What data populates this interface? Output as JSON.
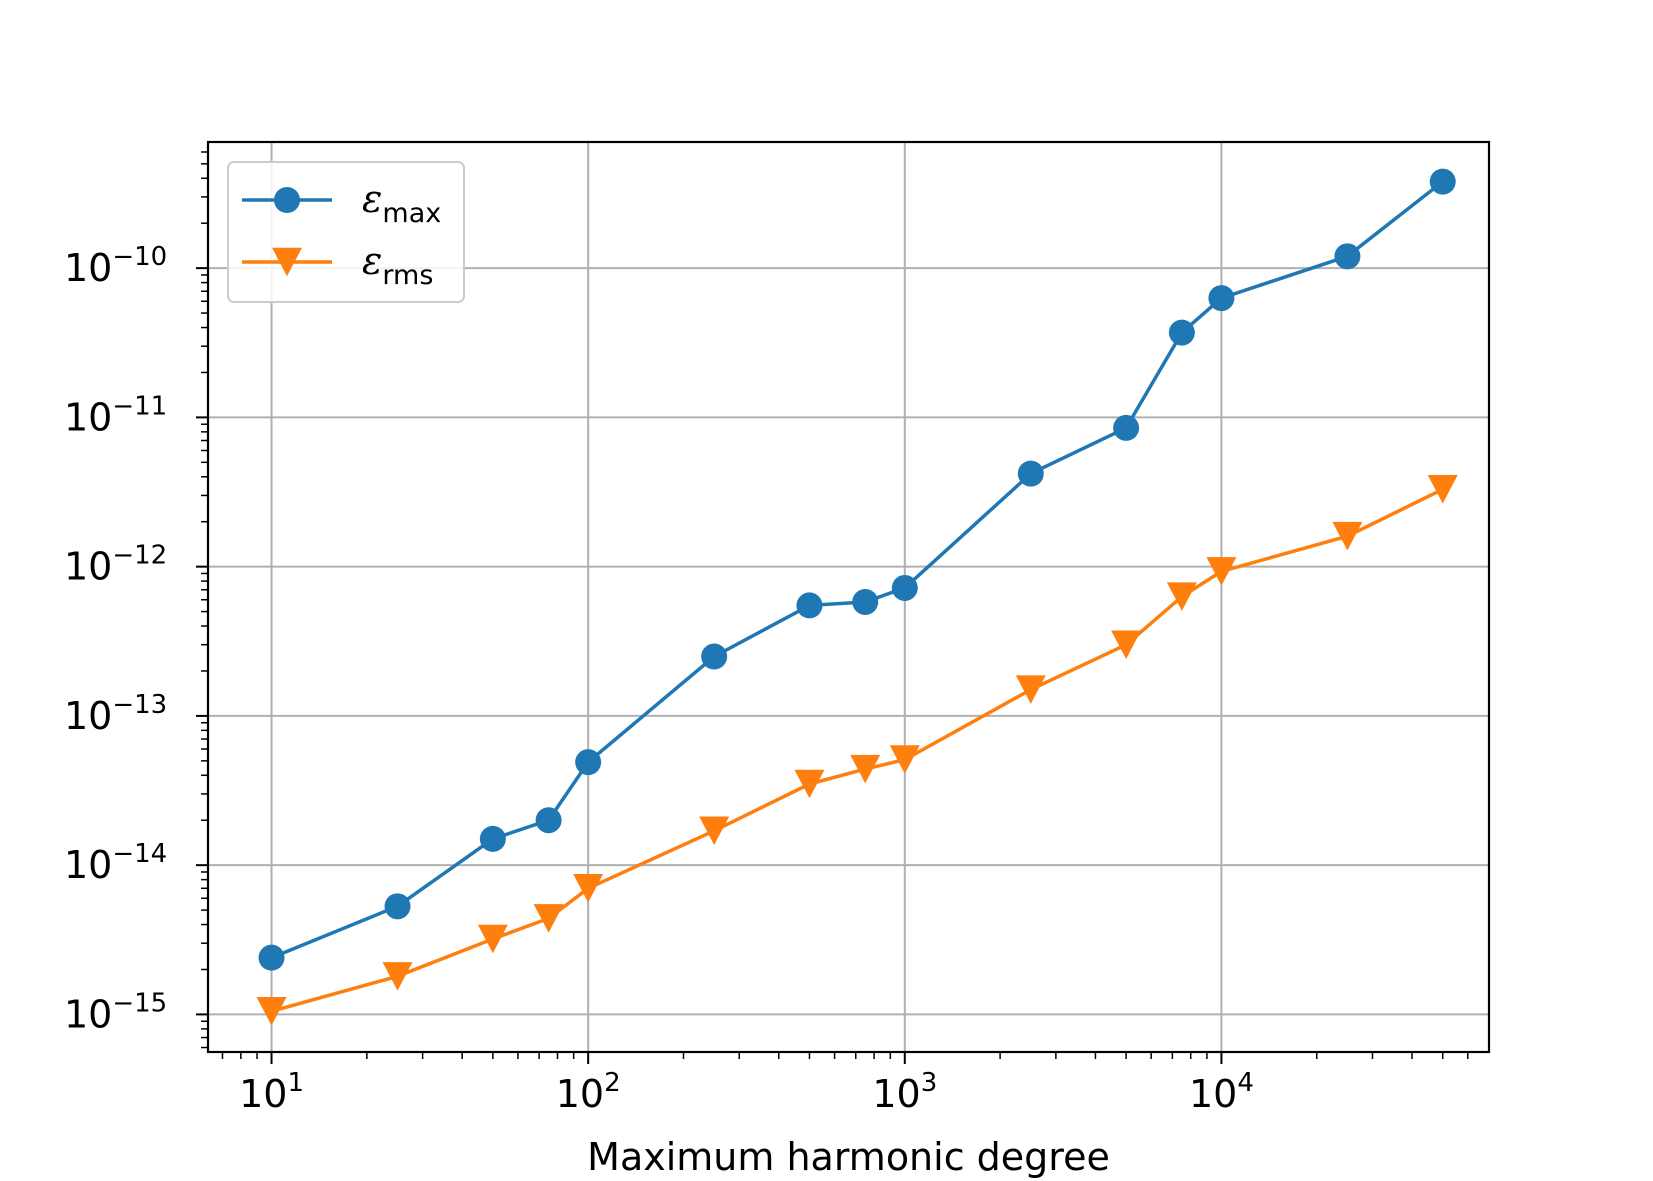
{
  "chart_data": {
    "type": "line",
    "xlabel": "Maximum harmonic degree",
    "ylabel": "",
    "xscale": "log",
    "yscale": "log",
    "xlim": [
      6.3,
      70000
    ],
    "ylim": [
      5.6e-16,
      7e-10
    ],
    "grid": true,
    "legend_position": "top-left",
    "x_ticks": [
      {
        "base": "10",
        "exp": "1",
        "value": 10
      },
      {
        "base": "10",
        "exp": "2",
        "value": 100
      },
      {
        "base": "10",
        "exp": "3",
        "value": 1000
      },
      {
        "base": "10",
        "exp": "4",
        "value": 10000
      }
    ],
    "y_ticks": [
      {
        "base": "10",
        "exp": "−15",
        "value": 1e-15
      },
      {
        "base": "10",
        "exp": "−14",
        "value": 1e-14
      },
      {
        "base": "10",
        "exp": "−13",
        "value": 1e-13
      },
      {
        "base": "10",
        "exp": "−12",
        "value": 1e-12
      },
      {
        "base": "10",
        "exp": "−11",
        "value": 1e-11
      },
      {
        "base": "10",
        "exp": "−10",
        "value": 1e-10
      }
    ],
    "x": [
      10,
      25,
      50,
      75,
      100,
      250,
      500,
      750,
      1000,
      2500,
      5000,
      7500,
      10000,
      25000,
      50000
    ],
    "series": [
      {
        "name": "ε",
        "subscript": "max",
        "color": "#1f77b4",
        "marker": "circle",
        "values": [
          2.4e-15,
          5.3e-15,
          1.5e-14,
          2e-14,
          4.9e-14,
          2.5e-13,
          5.5e-13,
          5.8e-13,
          7.2e-13,
          4.2e-12,
          8.5e-12,
          3.7e-11,
          6.3e-11,
          1.2e-10,
          3.8e-10
        ]
      },
      {
        "name": "ε",
        "subscript": "rms",
        "color": "#ff7f0e",
        "marker": "triangle-down",
        "values": [
          1.05e-15,
          1.8e-15,
          3.2e-15,
          4.4e-15,
          7e-15,
          1.7e-14,
          3.5e-14,
          4.4e-14,
          5.1e-14,
          1.5e-13,
          3e-13,
          6.3e-13,
          9.3e-13,
          1.6e-12,
          3.3e-12
        ]
      }
    ]
  }
}
